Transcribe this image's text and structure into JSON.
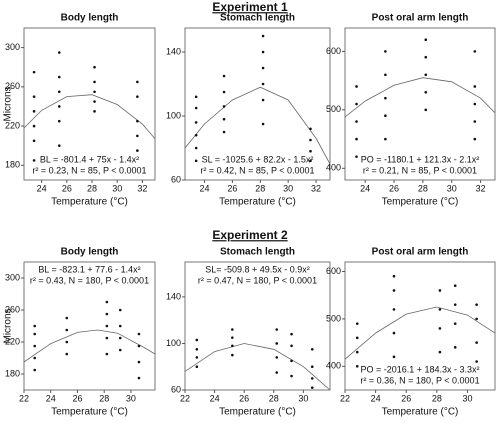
{
  "headings": [
    "Experiment 1",
    "Experiment 2"
  ],
  "chart_data": [
    {
      "type": "scatter",
      "title": "Body length",
      "ylabel": "Microns",
      "xlabel": "Temperature (°C)",
      "xlim": [
        22.6,
        33
      ],
      "xticks": [
        24,
        26,
        28,
        30,
        32
      ],
      "ylim": [
        165,
        320
      ],
      "yticks": [
        180,
        220,
        260,
        300
      ],
      "color": "#111",
      "x": [
        23.4,
        23.4,
        23.4,
        23.4,
        23.4,
        23.4,
        25.4,
        25.4,
        25.4,
        25.4,
        25.4,
        25.4,
        28.2,
        28.2,
        28.2,
        28.2,
        28.2,
        31.6,
        31.6,
        31.6,
        31.6,
        31.6
      ],
      "y": [
        185,
        205,
        220,
        235,
        250,
        275,
        200,
        225,
        240,
        255,
        270,
        295,
        235,
        245,
        255,
        265,
        280,
        195,
        210,
        225,
        250,
        265
      ],
      "fit": {
        "x": [
          22.6,
          24,
          26,
          28,
          30,
          32,
          33
        ],
        "y": [
          218,
          236,
          250,
          252,
          242,
          222,
          207
        ]
      },
      "annotations": [
        "BL = -801.4 + 75x - 1.4x²",
        "r² = 0.23, N = 85, P < 0.0001"
      ]
    },
    {
      "type": "scatter",
      "title": "Stomach length",
      "xlabel": "Temperature (°C)",
      "xlim": [
        22.6,
        33
      ],
      "xticks": [
        24,
        26,
        28,
        30,
        32
      ],
      "ylim": [
        60,
        155
      ],
      "yticks": [
        60,
        100,
        140
      ],
      "color": "#111",
      "x": [
        23.4,
        23.4,
        23.4,
        23.4,
        23.4,
        23.4,
        25.4,
        25.4,
        25.4,
        25.4,
        25.4,
        28.2,
        28.2,
        28.2,
        28.2,
        28.2,
        28.2,
        31.6,
        31.6,
        31.6,
        31.6
      ],
      "y": [
        72,
        80,
        88,
        96,
        105,
        112,
        90,
        98,
        106,
        115,
        125,
        95,
        110,
        120,
        130,
        140,
        150,
        72,
        78,
        85,
        92
      ],
      "fit": {
        "x": [
          22.6,
          24,
          26,
          28,
          30,
          32,
          33
        ],
        "y": [
          80,
          95,
          110,
          118,
          110,
          86,
          70
        ]
      },
      "annotations": [
        "SL = -1025.6 + 82.2x - 1.5x²",
        "r² = 0.42, N = 85, P < 0.0001"
      ]
    },
    {
      "type": "scatter",
      "title": "Post oral arm length",
      "xlabel": "Temperature (°C)",
      "xlim": [
        22.6,
        33
      ],
      "xticks": [
        24,
        26,
        28,
        30,
        32
      ],
      "ylim": [
        380,
        640
      ],
      "yticks": [
        400,
        500,
        600
      ],
      "color": "#111",
      "x": [
        23.4,
        23.4,
        23.4,
        23.4,
        23.4,
        25.4,
        25.4,
        25.4,
        25.4,
        25.4,
        28.2,
        28.2,
        28.2,
        28.2,
        28.2,
        31.6,
        31.6,
        31.6,
        31.6,
        31.6
      ],
      "y": [
        420,
        450,
        480,
        510,
        540,
        450,
        490,
        520,
        560,
        600,
        500,
        530,
        560,
        590,
        620,
        450,
        480,
        510,
        540,
        600
      ],
      "fit": {
        "x": [
          22.6,
          24,
          26,
          28,
          30,
          32,
          33
        ],
        "y": [
          488,
          515,
          542,
          555,
          548,
          520,
          495
        ]
      },
      "annotations": [
        "PO = -1180.1 + 121.3x - 2.1x²",
        "r² = 0.21, N = 85, P < 0.0001"
      ]
    },
    {
      "type": "scatter",
      "title": "Body length",
      "ylabel": "Microns",
      "xlabel": "Temperature (°C)",
      "xlim": [
        22,
        31.8
      ],
      "xticks": [
        22,
        24,
        26,
        28,
        30
      ],
      "ylim": [
        160,
        320
      ],
      "yticks": [
        180,
        220,
        260,
        300
      ],
      "color": "#111",
      "x": [
        22.8,
        22.8,
        22.8,
        22.8,
        22.8,
        25.2,
        25.2,
        25.2,
        25.2,
        28.2,
        28.2,
        28.2,
        28.2,
        28.2,
        29.2,
        29.2,
        29.2,
        29.2,
        30.6,
        30.6,
        30.6,
        30.6
      ],
      "y": [
        185,
        200,
        215,
        230,
        240,
        205,
        220,
        235,
        250,
        205,
        225,
        240,
        255,
        270,
        210,
        225,
        240,
        260,
        175,
        195,
        215,
        230
      ],
      "fit": {
        "x": [
          22,
          24,
          26,
          27.5,
          29,
          31,
          31.8
        ],
        "y": [
          195,
          218,
          232,
          235,
          231,
          213,
          205
        ]
      },
      "annotations": [
        "BL = -823.1 + 77.6 - 1.4x²",
        "r² = 0.43, N = 180, P < 0.0001"
      ]
    },
    {
      "type": "scatter",
      "title": "Stomach length",
      "xlabel": "Temperature (°C)",
      "xlim": [
        22,
        31.8
      ],
      "xticks": [
        22,
        24,
        26,
        28,
        30
      ],
      "ylim": [
        60,
        170
      ],
      "yticks": [
        60,
        100,
        140
      ],
      "color": "#111",
      "x": [
        22.8,
        22.8,
        22.8,
        22.8,
        25.2,
        25.2,
        25.2,
        25.2,
        28.2,
        28.2,
        28.2,
        28.2,
        29.2,
        29.2,
        29.2,
        29.2,
        30.6,
        30.6,
        30.6,
        30.6
      ],
      "y": [
        80,
        88,
        95,
        103,
        90,
        98,
        105,
        112,
        75,
        88,
        100,
        112,
        72,
        85,
        98,
        108,
        62,
        70,
        80,
        95
      ],
      "fit": {
        "x": [
          22,
          24,
          26,
          28,
          30,
          31.8
        ],
        "y": [
          76,
          93,
          100,
          95,
          80,
          60
        ]
      },
      "annotations": [
        "SL= -509.8 + 49.5x - 0.9x²",
        "r² = 0.47, N = 180, P < 0.0001"
      ]
    },
    {
      "type": "scatter",
      "title": "Post oral arm length",
      "xlabel": "Temperature (°C)",
      "xlim": [
        22,
        31.8
      ],
      "xticks": [
        22,
        24,
        26,
        28,
        30
      ],
      "ylim": [
        350,
        620
      ],
      "yticks": [
        400,
        500,
        600
      ],
      "color": "#111",
      "x": [
        22.8,
        22.8,
        22.8,
        22.8,
        25.2,
        25.2,
        25.2,
        25.2,
        25.2,
        28.2,
        28.2,
        28.2,
        28.2,
        29.2,
        29.2,
        29.2,
        29.2,
        30.6,
        30.6,
        30.6,
        30.6
      ],
      "y": [
        400,
        430,
        460,
        490,
        420,
        470,
        520,
        560,
        590,
        430,
        480,
        520,
        560,
        440,
        490,
        530,
        570,
        410,
        450,
        500,
        530
      ],
      "fit": {
        "x": [
          22,
          24,
          26,
          28,
          30,
          31.8
        ],
        "y": [
          415,
          470,
          510,
          525,
          508,
          470
        ]
      },
      "annotations": [
        "PO = -2016.1 + 184.3x - 3.3x²",
        "r² = 0.36, N = 180, P < 0.0001"
      ]
    }
  ]
}
